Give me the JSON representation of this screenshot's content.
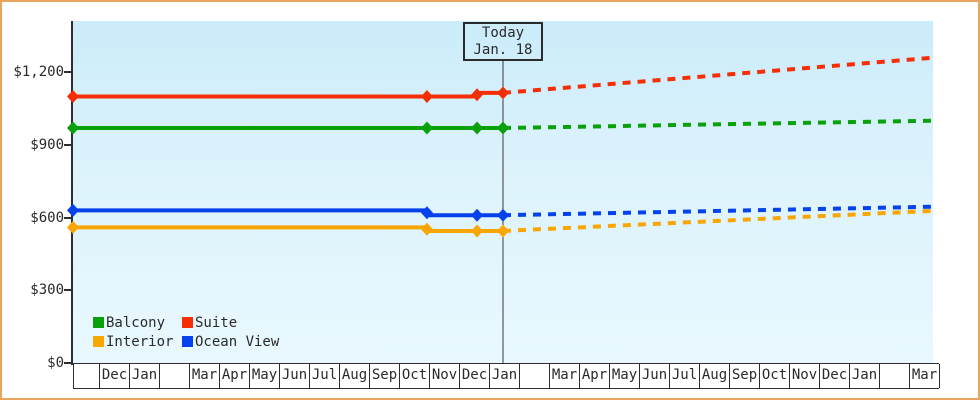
{
  "colors": {
    "frame_border": "#eba45e",
    "axis": "#2e2e2e",
    "text": "#2a2a2a",
    "plot_bg_top": "#cbecfa",
    "plot_bg_bottom": "#e9f8ff"
  },
  "chart_data": {
    "type": "line",
    "title": "",
    "grid": false,
    "ylim": [
      0,
      1410
    ],
    "y_axis": {
      "ticks": [
        {
          "value": 0,
          "label": "$0"
        },
        {
          "value": 300,
          "label": "$300"
        },
        {
          "value": 600,
          "label": "$600"
        },
        {
          "value": 900,
          "label": "$900"
        },
        {
          "value": 1200,
          "label": "$1,200"
        }
      ]
    },
    "x_axis": {
      "note": "monthly cells; blank strings are unlabeled (Feb) cells; first cell is a partial month at the left edge",
      "cells": [
        "",
        "Dec",
        "Jan",
        "",
        "Mar",
        "Apr",
        "May",
        "Jun",
        "Jul",
        "Aug",
        "Sep",
        "Oct",
        "Nov",
        "Dec",
        "Jan",
        "",
        "Mar",
        "Apr",
        "May",
        "Jun",
        "Jul",
        "Aug",
        "Sep",
        "Oct",
        "Nov",
        "Dec",
        "Jan",
        "",
        "Mar"
      ]
    },
    "today": {
      "line1": "Today",
      "line2": "Jan. 18",
      "t": 0.5
    },
    "series": [
      {
        "name": "Balcony",
        "color": "#09a109",
        "history": [
          [
            0,
            970
          ],
          [
            0.4116,
            970
          ],
          [
            0.4698,
            970
          ],
          [
            0.5,
            970
          ]
        ],
        "forecast": [
          [
            0.5,
            970
          ],
          [
            1,
            1000
          ]
        ],
        "markers": [
          [
            0,
            970
          ],
          [
            0.4116,
            970
          ],
          [
            0.4698,
            970
          ],
          [
            0.5,
            970
          ]
        ]
      },
      {
        "name": "Suite",
        "color": "#f52f05",
        "history": [
          [
            0,
            1100
          ],
          [
            0.4698,
            1100
          ],
          [
            0.4698,
            1115
          ],
          [
            0.5,
            1115
          ]
        ],
        "forecast": [
          [
            0.5,
            1115
          ],
          [
            1,
            1260
          ]
        ],
        "markers": [
          [
            0,
            1100
          ],
          [
            0.4116,
            1100
          ],
          [
            0.4698,
            1107
          ],
          [
            0.5,
            1115
          ]
        ]
      },
      {
        "name": "Interior",
        "color": "#f9a602",
        "history": [
          [
            0,
            560
          ],
          [
            0.4116,
            560
          ],
          [
            0.4116,
            545
          ],
          [
            0.5,
            545
          ]
        ],
        "forecast": [
          [
            0.5,
            545
          ],
          [
            1,
            628
          ]
        ],
        "markers": [
          [
            0,
            560
          ],
          [
            0.4116,
            552
          ],
          [
            0.4698,
            545
          ],
          [
            0.5,
            545
          ]
        ]
      },
      {
        "name": "Ocean View",
        "color": "#0542ec",
        "history": [
          [
            0,
            630
          ],
          [
            0.4116,
            630
          ],
          [
            0.4116,
            610
          ],
          [
            0.5,
            610
          ]
        ],
        "forecast": [
          [
            0.5,
            610
          ],
          [
            1,
            645
          ]
        ],
        "markers": [
          [
            0,
            630
          ],
          [
            0.4116,
            620
          ],
          [
            0.4698,
            610
          ],
          [
            0.5,
            610
          ]
        ]
      }
    ],
    "legend": {
      "position": "bottom-left-inside",
      "items": [
        {
          "label": "Balcony",
          "color": "#09a109"
        },
        {
          "label": "Suite",
          "color": "#f52f05"
        },
        {
          "label": "Interior",
          "color": "#f9a602"
        },
        {
          "label": "Ocean View",
          "color": "#0542ec"
        }
      ]
    }
  }
}
